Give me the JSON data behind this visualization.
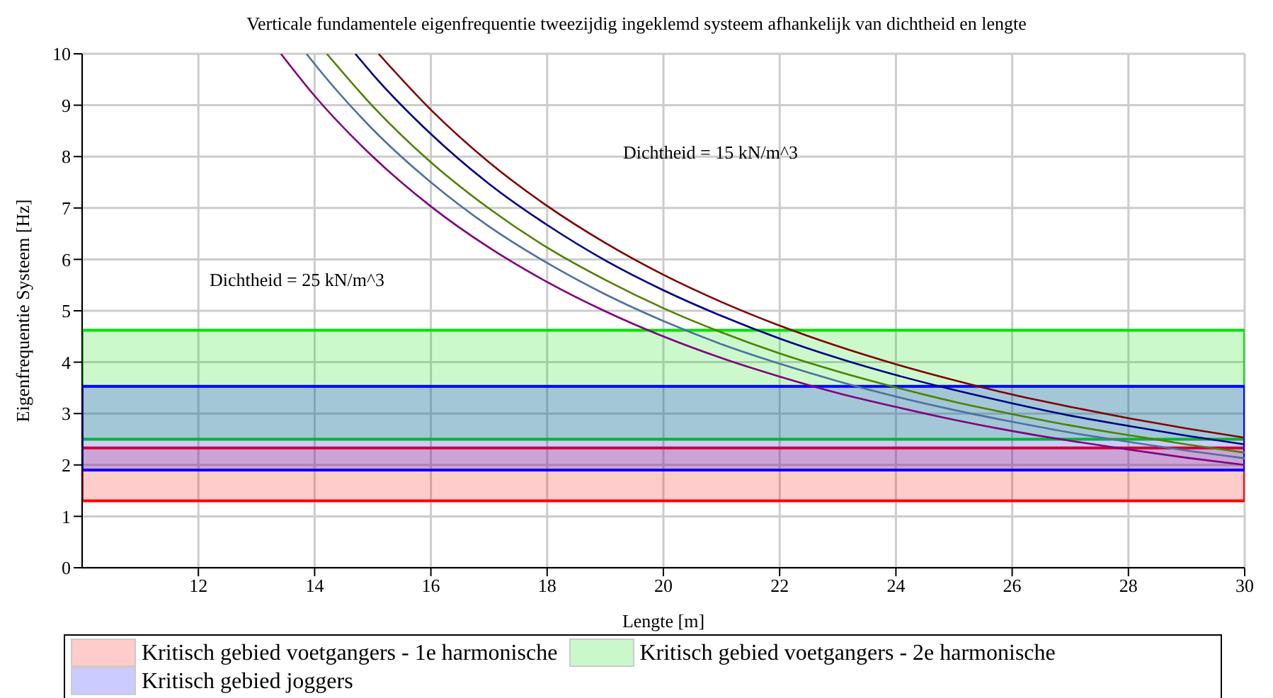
{
  "chart_data": {
    "type": "line",
    "title": "Verticale fundamentele eigenfrequentie tweezijdig ingeklemd systeem afhankelijk van dichtheid en lengte",
    "xlabel": "Lengte [m]",
    "ylabel": "Eigenfrequentie Systeem [Hz]",
    "xlim": [
      10,
      30
    ],
    "xticks": [
      12,
      14,
      16,
      18,
      20,
      22,
      24,
      26,
      28,
      30
    ],
    "ylim": [
      0,
      10
    ],
    "yticks": [
      0,
      1,
      2,
      3,
      4,
      5,
      6,
      7,
      8,
      9,
      10
    ],
    "bands": [
      {
        "axis": "y",
        "from": 1.3,
        "to": 2.33,
        "label": "Kritisch gebied voetgangers - 1e harmonische",
        "color": "#ff0000"
      },
      {
        "axis": "y",
        "from": 2.5,
        "to": 4.62,
        "label": "Kritisch gebied voetgangers - 2e harmonische",
        "color": "#00e000"
      },
      {
        "axis": "y",
        "from": 1.9,
        "to": 3.53,
        "label": "Kritisch gebied joggers",
        "color": "#0000ff"
      }
    ],
    "grid": true,
    "legend": "bottom",
    "marker": "none",
    "annotations": [
      "Dichtheid = 15 kN/m^3",
      "Dichtheid = 25 kN/m^3"
    ],
    "series": [
      {
        "color": "#800080",
        "x": [
          13.42,
          14,
          15,
          16,
          17,
          18,
          19,
          20,
          21,
          22,
          23,
          24,
          25,
          26,
          27,
          28,
          29,
          30
        ],
        "values": [
          10,
          9.18,
          8.0,
          7.03,
          6.23,
          5.56,
          4.99,
          4.5,
          4.08,
          3.72,
          3.4,
          3.13,
          2.88,
          2.66,
          2.47,
          2.3,
          2.14,
          2.0
        ]
      },
      {
        "color": "#5070a0",
        "x": [
          13.86,
          14,
          15,
          16,
          17,
          18,
          19,
          20,
          21,
          22,
          23,
          24,
          25,
          26,
          27,
          28,
          29,
          30
        ],
        "values": [
          10,
          9.8,
          8.53,
          7.5,
          6.64,
          5.93,
          5.32,
          4.8,
          4.35,
          3.97,
          3.63,
          3.33,
          3.07,
          2.84,
          2.63,
          2.45,
          2.28,
          2.13
        ]
      },
      {
        "color": "#508000",
        "x": [
          14.21,
          15,
          16,
          17,
          18,
          19,
          20,
          21,
          22,
          23,
          24,
          25,
          26,
          27,
          28,
          29,
          30
        ],
        "values": [
          10,
          8.98,
          7.89,
          6.99,
          6.23,
          5.6,
          5.05,
          4.58,
          4.17,
          3.82,
          3.51,
          3.23,
          2.99,
          2.77,
          2.58,
          2.4,
          2.24
        ]
      },
      {
        "color": "#000080",
        "x": [
          14.7,
          15,
          16,
          17,
          18,
          19,
          20,
          21,
          22,
          23,
          24,
          25,
          26,
          27,
          28,
          29,
          30
        ],
        "values": [
          10,
          9.6,
          8.44,
          7.47,
          6.67,
          5.98,
          5.4,
          4.9,
          4.46,
          4.08,
          3.75,
          3.46,
          3.2,
          2.96,
          2.76,
          2.57,
          2.4
        ]
      },
      {
        "color": "#800000",
        "x": [
          15.1,
          16,
          17,
          18,
          19,
          20,
          21,
          22,
          23,
          24,
          25,
          26,
          27,
          28,
          29,
          30
        ],
        "values": [
          10,
          8.91,
          7.89,
          7.04,
          6.32,
          5.7,
          5.17,
          4.71,
          4.31,
          3.96,
          3.65,
          3.37,
          3.13,
          2.91,
          2.71,
          2.53
        ]
      }
    ]
  }
}
